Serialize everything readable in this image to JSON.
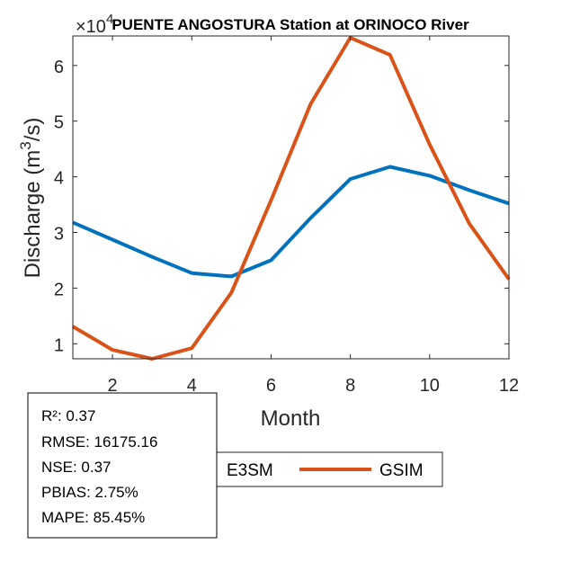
{
  "chart_data": {
    "type": "line",
    "title": "PUENTE ANGOSTURA  Station at  ORINOCO  River",
    "xlabel": "Month",
    "ylabel": "Discharge (m³/s)",
    "ylabel_parts": {
      "pre": "Discharge (m",
      "sup": "3",
      "post": "/s)"
    },
    "y_exponent_label": {
      "base": "×10",
      "exp": "4"
    },
    "xlim": [
      1,
      12
    ],
    "ylim": [
      0.73,
      6.53
    ],
    "y_scale": 10000,
    "x_ticks": [
      2,
      4,
      6,
      8,
      10,
      12
    ],
    "y_ticks": [
      1,
      2,
      3,
      4,
      5,
      6
    ],
    "x": [
      1,
      2,
      3,
      4,
      5,
      6,
      7,
      8,
      9,
      10,
      11,
      12
    ],
    "series": [
      {
        "name": "E3SM",
        "color": "#0072BD",
        "values": [
          3.18,
          2.87,
          2.56,
          2.27,
          2.21,
          2.5,
          3.26,
          3.96,
          4.18,
          4.02,
          3.76,
          3.52
        ]
      },
      {
        "name": "GSIM",
        "color": "#D95319",
        "values": [
          1.31,
          0.89,
          0.73,
          0.92,
          1.92,
          3.58,
          5.31,
          6.5,
          6.19,
          4.58,
          3.16,
          2.16
        ]
      }
    ],
    "grid": false,
    "legend_placement": "bottom-outside",
    "stats": [
      "R²: 0.37",
      "RMSE: 16175.16",
      "NSE: 0.37",
      "PBIAS: 2.75%",
      "MAPE: 85.45%"
    ]
  }
}
